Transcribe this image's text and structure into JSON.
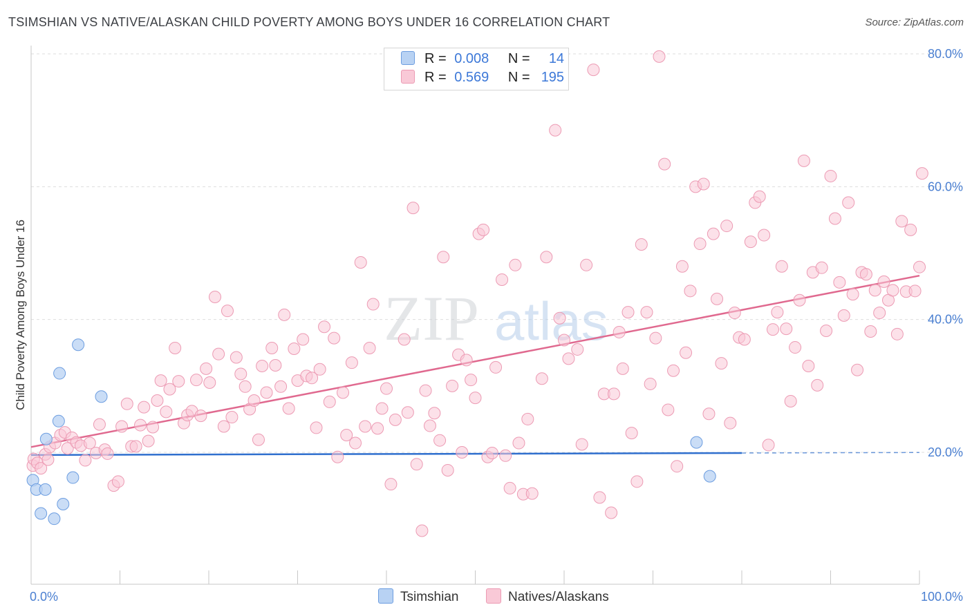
{
  "title": "TSIMSHIAN VS NATIVE/ALASKAN CHILD POVERTY AMONG BOYS UNDER 16 CORRELATION CHART",
  "source": "Source: ZipAtlas.com",
  "watermark": {
    "zip": "ZIP",
    "atlas": "atlas"
  },
  "legend": {
    "r_label": "R =",
    "n_label": "N =",
    "rows": [
      {
        "r": "0.008",
        "n": "14"
      },
      {
        "r": "0.569",
        "n": "195"
      }
    ]
  },
  "bottom_legend": [
    "Tsimshian",
    "Natives/Alaskans"
  ],
  "colors": {
    "tsimshian_fill": "#b8d2f3",
    "tsimshian_stroke": "#6c9de0",
    "tsimshian_line": "#2f6fce",
    "natives_fill": "#f9c9d7",
    "natives_stroke": "#ec9ab3",
    "natives_line": "#e0698f",
    "axis_label": "#4a7fd1",
    "grid": "#dddddd"
  },
  "chart_data": {
    "type": "scatter",
    "title": "TSIMSHIAN VS NATIVE/ALASKAN CHILD POVERTY AMONG BOYS UNDER 16 CORRELATION CHART",
    "xlabel": "",
    "ylabel": "Child Poverty Among Boys Under 16",
    "xlim": [
      0,
      100
    ],
    "ylim": [
      0,
      82
    ],
    "x_tick_labels": [
      "0.0%",
      "100.0%"
    ],
    "y_ticks": [
      20,
      40,
      60,
      80
    ],
    "y_tick_labels": [
      "20.0%",
      "40.0%",
      "60.0%",
      "80.0%"
    ],
    "grid": "horizontal dashed",
    "legend_position": "top-center",
    "series": [
      {
        "name": "Tsimshian",
        "r": 0.008,
        "n": 14,
        "trend": {
          "x": [
            0,
            80
          ],
          "y": [
            19.6,
            19.9
          ],
          "dashed_extension_to": 100
        },
        "points": [
          [
            0.2,
            15.8
          ],
          [
            0.6,
            14.4
          ],
          [
            1.1,
            10.8
          ],
          [
            1.6,
            14.4
          ],
          [
            1.7,
            22.0
          ],
          [
            2.6,
            10.0
          ],
          [
            3.1,
            24.7
          ],
          [
            3.2,
            31.9
          ],
          [
            3.6,
            12.2
          ],
          [
            4.7,
            16.2
          ],
          [
            5.3,
            36.2
          ],
          [
            7.9,
            28.4
          ],
          [
            74.9,
            21.5
          ],
          [
            76.4,
            16.4
          ]
        ]
      },
      {
        "name": "Natives/Alaskans",
        "r": 0.569,
        "n": 195,
        "trend": {
          "x": [
            0,
            100
          ],
          "y": [
            20.8,
            46.6
          ]
        },
        "points": [
          [
            0.2,
            18.0
          ],
          [
            0.3,
            19.0
          ],
          [
            0.7,
            18.4
          ],
          [
            1.1,
            17.6
          ],
          [
            1.6,
            19.7
          ],
          [
            1.9,
            18.9
          ],
          [
            2.1,
            20.8
          ],
          [
            2.7,
            21.4
          ],
          [
            3.3,
            22.6
          ],
          [
            3.8,
            23.0
          ],
          [
            4.1,
            20.6
          ],
          [
            4.6,
            22.2
          ],
          [
            5.1,
            21.5
          ],
          [
            5.6,
            21.0
          ],
          [
            6.1,
            18.8
          ],
          [
            6.6,
            21.4
          ],
          [
            7.3,
            19.9
          ],
          [
            7.7,
            24.2
          ],
          [
            8.3,
            20.4
          ],
          [
            8.6,
            19.8
          ],
          [
            9.3,
            15.0
          ],
          [
            9.8,
            15.6
          ],
          [
            10.2,
            23.9
          ],
          [
            10.8,
            27.3
          ],
          [
            11.3,
            20.9
          ],
          [
            11.8,
            20.9
          ],
          [
            12.3,
            24.1
          ],
          [
            12.7,
            26.8
          ],
          [
            13.2,
            21.7
          ],
          [
            13.7,
            23.8
          ],
          [
            14.2,
            27.8
          ],
          [
            14.6,
            30.8
          ],
          [
            15.2,
            26.1
          ],
          [
            15.6,
            29.5
          ],
          [
            16.2,
            35.7
          ],
          [
            16.6,
            30.7
          ],
          [
            17.2,
            24.4
          ],
          [
            17.6,
            25.6
          ],
          [
            18.1,
            26.2
          ],
          [
            18.6,
            30.9
          ],
          [
            19.1,
            25.5
          ],
          [
            19.7,
            32.6
          ],
          [
            20.1,
            30.5
          ],
          [
            20.7,
            43.4
          ],
          [
            21.1,
            34.8
          ],
          [
            21.7,
            23.9
          ],
          [
            22.1,
            41.3
          ],
          [
            22.6,
            25.3
          ],
          [
            23.1,
            34.3
          ],
          [
            23.6,
            31.8
          ],
          [
            24.1,
            29.9
          ],
          [
            24.6,
            26.5
          ],
          [
            25.1,
            27.8
          ],
          [
            25.6,
            21.9
          ],
          [
            26.0,
            33.0
          ],
          [
            26.5,
            29.0
          ],
          [
            27.1,
            35.7
          ],
          [
            27.5,
            33.1
          ],
          [
            28.1,
            29.9
          ],
          [
            28.5,
            40.7
          ],
          [
            29.0,
            26.6
          ],
          [
            29.6,
            35.6
          ],
          [
            30.0,
            30.8
          ],
          [
            30.6,
            37.0
          ],
          [
            31.0,
            31.5
          ],
          [
            31.6,
            31.2
          ],
          [
            32.1,
            23.7
          ],
          [
            32.5,
            32.5
          ],
          [
            33.0,
            38.9
          ],
          [
            33.6,
            27.6
          ],
          [
            34.1,
            37.2
          ],
          [
            34.5,
            19.3
          ],
          [
            35.1,
            29.0
          ],
          [
            35.5,
            22.6
          ],
          [
            36.1,
            33.5
          ],
          [
            36.5,
            21.4
          ],
          [
            37.1,
            48.6
          ],
          [
            37.6,
            23.9
          ],
          [
            38.1,
            35.7
          ],
          [
            38.5,
            42.3
          ],
          [
            39.0,
            23.6
          ],
          [
            39.5,
            26.6
          ],
          [
            40.0,
            29.6
          ],
          [
            40.5,
            15.2
          ],
          [
            41.0,
            24.9
          ],
          [
            42.0,
            37.0
          ],
          [
            42.4,
            26.0
          ],
          [
            43.0,
            56.8
          ],
          [
            43.4,
            18.2
          ],
          [
            44.0,
            8.2
          ],
          [
            44.4,
            29.3
          ],
          [
            44.9,
            24.0
          ],
          [
            45.4,
            25.9
          ],
          [
            46.0,
            21.8
          ],
          [
            46.4,
            49.4
          ],
          [
            46.9,
            17.3
          ],
          [
            47.4,
            30.0
          ],
          [
            48.1,
            34.7
          ],
          [
            48.5,
            20.0
          ],
          [
            49.0,
            33.9
          ],
          [
            49.5,
            30.9
          ],
          [
            50.0,
            28.2
          ],
          [
            50.4,
            52.9
          ],
          [
            50.9,
            53.5
          ],
          [
            51.4,
            19.3
          ],
          [
            51.9,
            19.9
          ],
          [
            52.3,
            32.8
          ],
          [
            53.0,
            46.0
          ],
          [
            53.4,
            19.5
          ],
          [
            53.9,
            14.6
          ],
          [
            54.5,
            48.2
          ],
          [
            54.9,
            21.4
          ],
          [
            55.4,
            13.7
          ],
          [
            55.9,
            25.0
          ],
          [
            56.4,
            13.8
          ],
          [
            57.5,
            31.1
          ],
          [
            58.0,
            49.4
          ],
          [
            59.0,
            68.5
          ],
          [
            59.5,
            40.2
          ],
          [
            60.0,
            36.9
          ],
          [
            60.5,
            34.1
          ],
          [
            61.5,
            35.5
          ],
          [
            62.0,
            21.2
          ],
          [
            62.5,
            48.2
          ],
          [
            63.3,
            77.6
          ],
          [
            64.0,
            13.2
          ],
          [
            64.5,
            28.8
          ],
          [
            65.3,
            10.9
          ],
          [
            65.6,
            28.8
          ],
          [
            66.2,
            38.1
          ],
          [
            66.6,
            32.6
          ],
          [
            67.2,
            41.1
          ],
          [
            67.6,
            22.9
          ],
          [
            68.2,
            15.6
          ],
          [
            68.7,
            51.3
          ],
          [
            69.3,
            41.1
          ],
          [
            69.7,
            30.3
          ],
          [
            70.3,
            37.2
          ],
          [
            70.7,
            79.6
          ],
          [
            71.3,
            63.4
          ],
          [
            71.7,
            26.4
          ],
          [
            72.3,
            32.3
          ],
          [
            72.7,
            17.9
          ],
          [
            73.3,
            48.0
          ],
          [
            73.7,
            35.0
          ],
          [
            74.2,
            44.3
          ],
          [
            74.8,
            60.0
          ],
          [
            75.3,
            51.4
          ],
          [
            75.7,
            60.4
          ],
          [
            76.3,
            25.8
          ],
          [
            76.8,
            52.9
          ],
          [
            77.2,
            43.1
          ],
          [
            77.7,
            33.4
          ],
          [
            78.3,
            54.1
          ],
          [
            78.7,
            24.4
          ],
          [
            79.2,
            41.0
          ],
          [
            79.7,
            37.3
          ],
          [
            80.3,
            37.0
          ],
          [
            81.0,
            51.7
          ],
          [
            81.5,
            57.6
          ],
          [
            82.0,
            58.5
          ],
          [
            82.5,
            52.7
          ],
          [
            83.0,
            21.1
          ],
          [
            83.5,
            38.5
          ],
          [
            84.0,
            41.1
          ],
          [
            84.5,
            48.0
          ],
          [
            85.0,
            38.6
          ],
          [
            85.5,
            27.7
          ],
          [
            86.0,
            35.8
          ],
          [
            86.5,
            42.9
          ],
          [
            87.0,
            63.9
          ],
          [
            87.5,
            33.0
          ],
          [
            88.0,
            47.1
          ],
          [
            88.5,
            30.1
          ],
          [
            89.0,
            47.8
          ],
          [
            89.5,
            38.3
          ],
          [
            90.0,
            61.6
          ],
          [
            90.5,
            55.2
          ],
          [
            91.0,
            45.6
          ],
          [
            91.5,
            40.6
          ],
          [
            92.0,
            57.6
          ],
          [
            92.5,
            43.8
          ],
          [
            93.0,
            32.4
          ],
          [
            93.5,
            47.1
          ],
          [
            94.0,
            46.8
          ],
          [
            94.5,
            38.2
          ],
          [
            95.0,
            44.4
          ],
          [
            95.5,
            41.0
          ],
          [
            96.0,
            45.7
          ],
          [
            96.5,
            42.9
          ],
          [
            97.0,
            44.4
          ],
          [
            97.5,
            37.8
          ],
          [
            98.0,
            54.8
          ],
          [
            98.5,
            44.2
          ],
          [
            99.0,
            53.5
          ],
          [
            99.5,
            44.3
          ],
          [
            100.0,
            47.9
          ],
          [
            100.3,
            62.0
          ]
        ]
      }
    ]
  }
}
